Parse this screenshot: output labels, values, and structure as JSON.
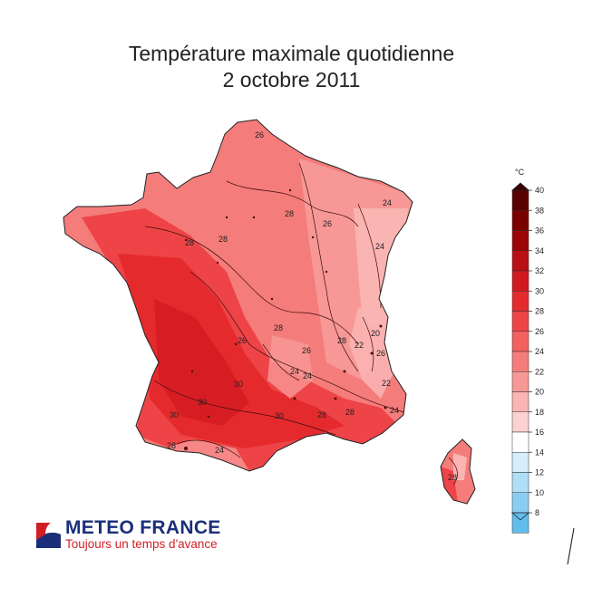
{
  "title": {
    "line1": "Température maximale quotidienne",
    "line2": "2 octobre 2011"
  },
  "legend": {
    "unit": "°C",
    "ticks": [
      "40",
      "38",
      "36",
      "34",
      "32",
      "30",
      "28",
      "26",
      "24",
      "22",
      "20",
      "18",
      "16",
      "14",
      "12",
      "10",
      "8"
    ],
    "colors": [
      "#5a0000",
      "#7a0000",
      "#9c0508",
      "#b81015",
      "#d0181f",
      "#e52a2d",
      "#ee4447",
      "#f2605f",
      "#f47c7a",
      "#f79896",
      "#fab4b2",
      "#fcd2d0",
      "#ffffff",
      "#d6eefb",
      "#b0def7",
      "#89cef2",
      "#63bdec"
    ]
  },
  "map": {
    "contour_labels": [
      "26",
      "28",
      "28",
      "26",
      "24",
      "24",
      "28",
      "30",
      "30",
      "28",
      "24",
      "28",
      "30",
      "30",
      "28",
      "24",
      "24",
      "28",
      "26",
      "20",
      "28",
      "22",
      "26",
      "22",
      "24",
      "26",
      "28"
    ]
  },
  "logo": {
    "name": "METEO FRANCE",
    "slogan": "Toujours un temps d'avance"
  }
}
